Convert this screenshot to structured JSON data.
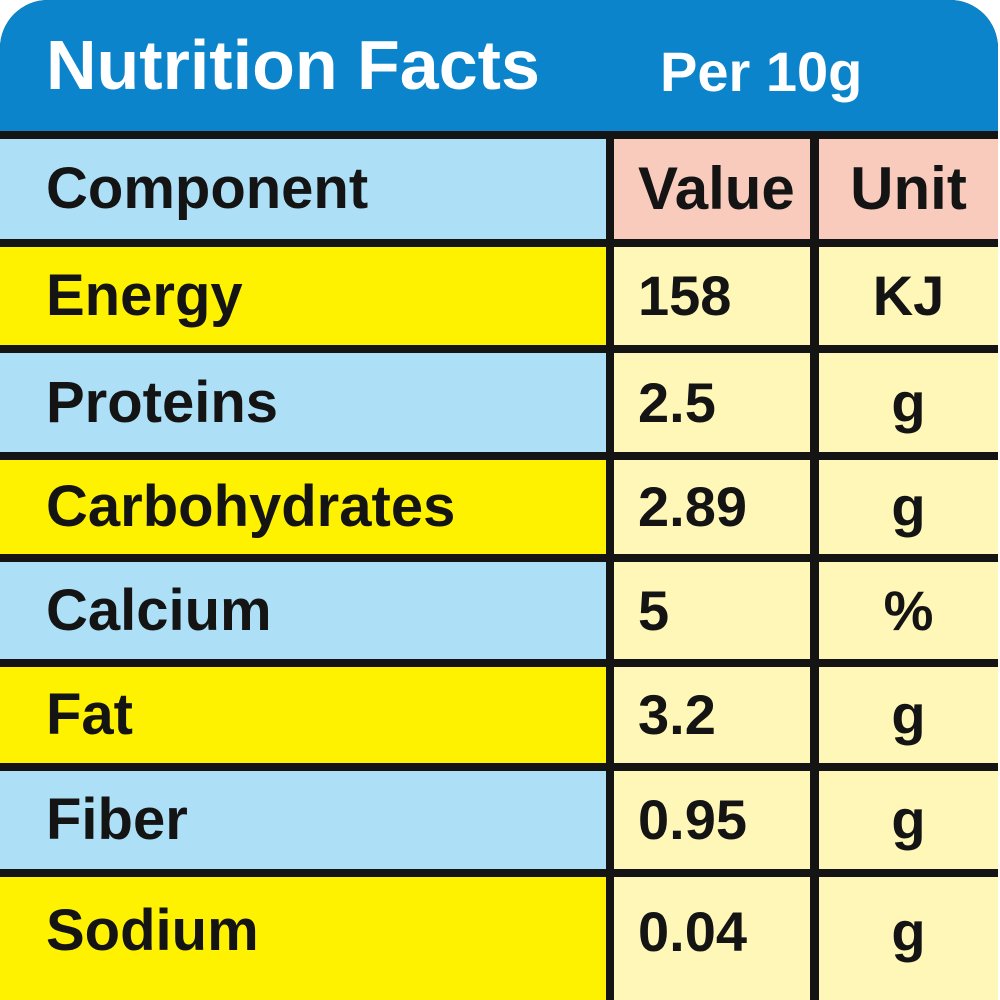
{
  "header": {
    "title": "Nutrition Facts",
    "serving": "Per 10g"
  },
  "columns": {
    "component": "Component",
    "value": "Value",
    "unit": "Unit"
  },
  "rows": [
    {
      "component": "Energy",
      "value": "158",
      "unit": "KJ"
    },
    {
      "component": "Proteins",
      "value": "2.5",
      "unit": "g"
    },
    {
      "component": "Carbohydrates",
      "value": "2.89",
      "unit": "g"
    },
    {
      "component": "Calcium",
      "value": "5",
      "unit": "%"
    },
    {
      "component": "Fat",
      "value": "3.2",
      "unit": "g"
    },
    {
      "component": "Fiber",
      "value": "0.95",
      "unit": "g"
    },
    {
      "component": "Sodium",
      "value": "0.04",
      "unit": "g"
    }
  ],
  "colors": {
    "header_blue": "#0b84cc",
    "row_blue": "#ade0f7",
    "row_yellow": "#fff200",
    "value_cell": "#fff7b8",
    "column_header_pink": "#f9cbbc",
    "grid_line": "#141414"
  }
}
